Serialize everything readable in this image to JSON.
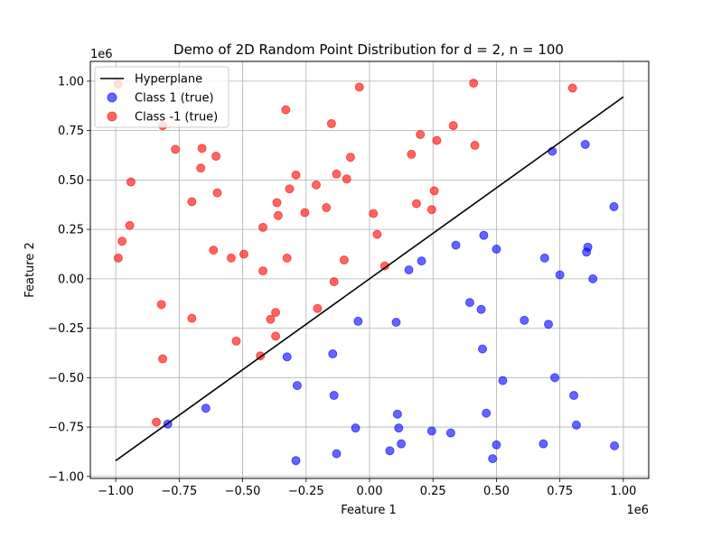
{
  "chart_data": {
    "type": "scatter",
    "title": "Demo of 2D Random Point Distribution for d = 2, n = 100",
    "xlabel": "Feature 1",
    "ylabel": "Feature 2",
    "x_offset_label": "1e6",
    "y_offset_label": "1e6",
    "xlim": [
      -1.1,
      1.1
    ],
    "ylim": [
      -1.01,
      1.1
    ],
    "xticks": [
      -1.0,
      -0.75,
      -0.5,
      -0.25,
      0.0,
      0.25,
      0.5,
      0.75,
      1.0
    ],
    "xtick_labels": [
      "−1.00",
      "−0.75",
      "−0.50",
      "−0.25",
      "0.00",
      "0.25",
      "0.50",
      "0.75",
      "1.00"
    ],
    "yticks": [
      -1.0,
      -0.75,
      -0.5,
      -0.25,
      0.0,
      0.25,
      0.5,
      0.75,
      1.0
    ],
    "ytick_labels": [
      "−1.00",
      "−0.75",
      "−0.50",
      "−0.25",
      "0.00",
      "0.25",
      "0.50",
      "0.75",
      "1.00"
    ],
    "grid": true,
    "legend_position": "top-left",
    "line": {
      "name": "Hyperplane",
      "color": "#000000",
      "x": [
        -1.0,
        1.0
      ],
      "y": [
        -0.92,
        0.92
      ]
    },
    "series": [
      {
        "name": "Class 1 (true)",
        "color": "#0000ff",
        "points": [
          [
            0.72,
            0.645
          ],
          [
            0.85,
            0.68
          ],
          [
            0.963,
            0.365
          ],
          [
            0.45,
            0.22
          ],
          [
            0.34,
            0.17
          ],
          [
            0.5,
            0.15
          ],
          [
            0.86,
            0.16
          ],
          [
            0.855,
            0.135
          ],
          [
            0.69,
            0.105
          ],
          [
            0.205,
            0.09
          ],
          [
            0.155,
            0.045
          ],
          [
            0.75,
            0.02
          ],
          [
            0.88,
            0.0
          ],
          [
            0.395,
            -0.12
          ],
          [
            0.44,
            -0.155
          ],
          [
            0.61,
            -0.21
          ],
          [
            0.705,
            -0.23
          ],
          [
            -0.045,
            -0.215
          ],
          [
            0.105,
            -0.22
          ],
          [
            0.445,
            -0.355
          ],
          [
            -0.145,
            -0.38
          ],
          [
            -0.325,
            -0.395
          ],
          [
            0.525,
            -0.515
          ],
          [
            0.73,
            -0.5
          ],
          [
            -0.285,
            -0.54
          ],
          [
            -0.14,
            -0.59
          ],
          [
            0.805,
            -0.59
          ],
          [
            -0.645,
            -0.655
          ],
          [
            0.11,
            -0.685
          ],
          [
            0.46,
            -0.68
          ],
          [
            -0.795,
            -0.735
          ],
          [
            0.815,
            -0.74
          ],
          [
            -0.055,
            -0.755
          ],
          [
            0.115,
            -0.755
          ],
          [
            0.245,
            -0.77
          ],
          [
            0.32,
            -0.78
          ],
          [
            0.125,
            -0.835
          ],
          [
            0.685,
            -0.835
          ],
          [
            0.5,
            -0.84
          ],
          [
            0.965,
            -0.845
          ],
          [
            0.08,
            -0.87
          ],
          [
            -0.13,
            -0.885
          ],
          [
            -0.29,
            -0.92
          ],
          [
            0.485,
            -0.91
          ]
        ]
      },
      {
        "name": "Class -1 (true)",
        "color": "#ff0000",
        "points": [
          [
            -0.99,
            0.985
          ],
          [
            -0.04,
            0.97
          ],
          [
            0.41,
            0.99
          ],
          [
            0.8,
            0.965
          ],
          [
            -0.33,
            0.855
          ],
          [
            -0.15,
            0.785
          ],
          [
            0.33,
            0.775
          ],
          [
            -0.815,
            0.775
          ],
          [
            0.2,
            0.73
          ],
          [
            0.265,
            0.7
          ],
          [
            0.415,
            0.675
          ],
          [
            -0.765,
            0.655
          ],
          [
            -0.66,
            0.66
          ],
          [
            0.165,
            0.63
          ],
          [
            -0.075,
            0.615
          ],
          [
            -0.605,
            0.62
          ],
          [
            -0.665,
            0.56
          ],
          [
            -0.29,
            0.525
          ],
          [
            -0.13,
            0.53
          ],
          [
            -0.09,
            0.505
          ],
          [
            -0.94,
            0.49
          ],
          [
            -0.21,
            0.475
          ],
          [
            -0.315,
            0.455
          ],
          [
            0.255,
            0.445
          ],
          [
            -0.6,
            0.435
          ],
          [
            -0.7,
            0.39
          ],
          [
            -0.365,
            0.385
          ],
          [
            0.185,
            0.38
          ],
          [
            -0.17,
            0.36
          ],
          [
            0.245,
            0.35
          ],
          [
            -0.255,
            0.335
          ],
          [
            0.015,
            0.33
          ],
          [
            -0.36,
            0.32
          ],
          [
            -0.945,
            0.27
          ],
          [
            -0.42,
            0.26
          ],
          [
            0.03,
            0.225
          ],
          [
            -0.975,
            0.19
          ],
          [
            -0.615,
            0.145
          ],
          [
            -0.495,
            0.125
          ],
          [
            -0.99,
            0.105
          ],
          [
            -0.545,
            0.105
          ],
          [
            -0.325,
            0.105
          ],
          [
            -0.1,
            0.095
          ],
          [
            0.06,
            0.065
          ],
          [
            -0.42,
            0.04
          ],
          [
            -0.14,
            -0.015
          ],
          [
            -0.82,
            -0.13
          ],
          [
            -0.205,
            -0.15
          ],
          [
            -0.37,
            -0.17
          ],
          [
            -0.7,
            -0.2
          ],
          [
            -0.39,
            -0.205
          ],
          [
            -0.37,
            -0.29
          ],
          [
            -0.525,
            -0.315
          ],
          [
            -0.43,
            -0.39
          ],
          [
            -0.815,
            -0.405
          ],
          [
            -0.84,
            -0.725
          ]
        ]
      }
    ]
  }
}
